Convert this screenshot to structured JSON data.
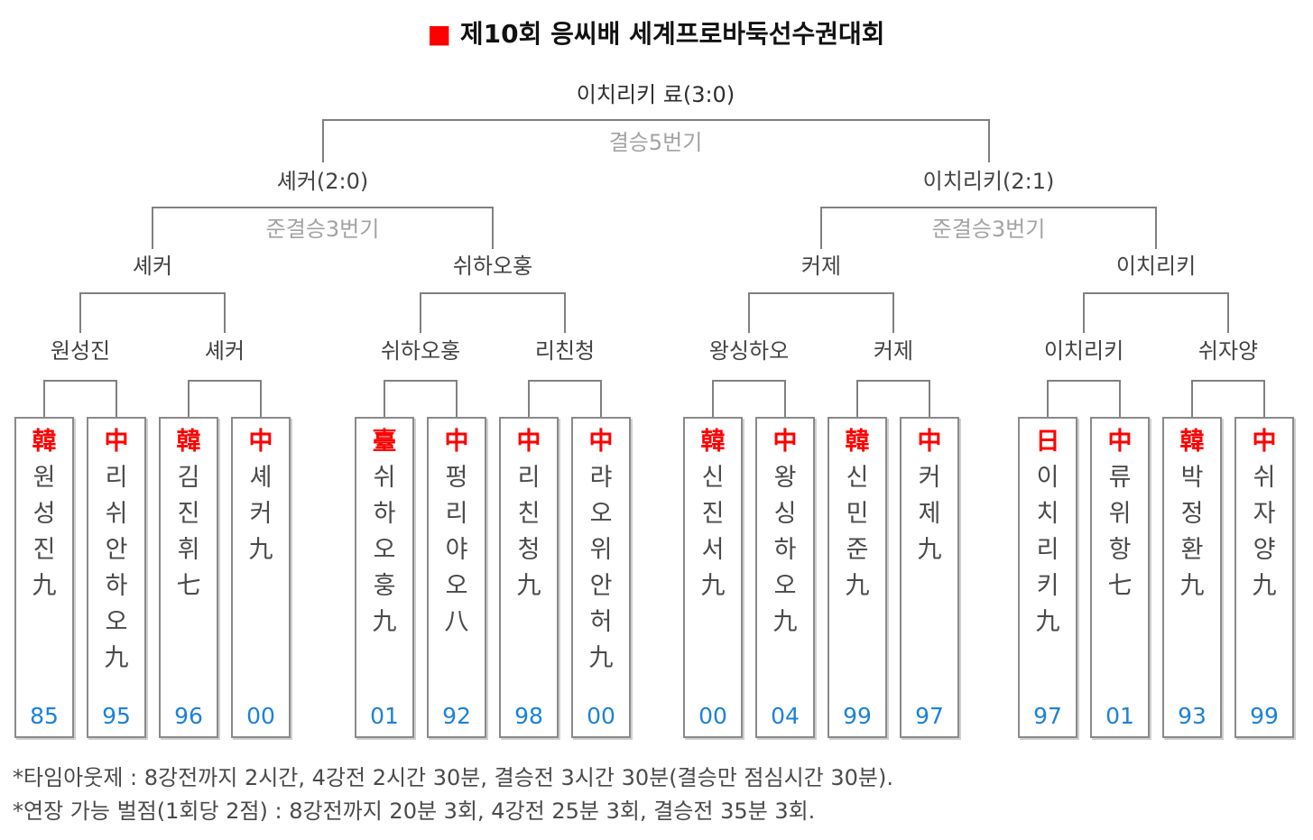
{
  "title": {
    "bullet": "■",
    "text": "제10회 응씨배 세계프로바둑선수권대회"
  },
  "bracket": {
    "champion": "이치리키 료(3:0)",
    "final_series": "결승5번기",
    "semifinal_winners": [
      "셰커(2:0)",
      "이치리키(2:1)"
    ],
    "semifinal_series": [
      "준결승3번기",
      "준결승3번기"
    ],
    "quarterfinal_winners": [
      "셰커",
      "쉬하오훙",
      "커제",
      "이치리키"
    ],
    "round16_winners": [
      "원성진",
      "셰커",
      "쉬하오훙",
      "리친청",
      "왕싱하오",
      "커제",
      "이치리키",
      "쉬자양"
    ],
    "players": [
      {
        "nation": "韓",
        "name": "원성진九",
        "chars": [
          "원",
          "성",
          "진",
          "九"
        ],
        "year": "85"
      },
      {
        "nation": "中",
        "name": "리쉬안하오九",
        "chars": [
          "리",
          "쉬",
          "안",
          "하",
          "오",
          "九"
        ],
        "year": "95"
      },
      {
        "nation": "韓",
        "name": "김진휘七",
        "chars": [
          "김",
          "진",
          "휘",
          "七"
        ],
        "year": "96"
      },
      {
        "nation": "中",
        "name": "셰커九",
        "chars": [
          "셰",
          "커",
          "九"
        ],
        "year": "00"
      },
      {
        "nation": "臺",
        "name": "쉬하오훙九",
        "chars": [
          "쉬",
          "하",
          "오",
          "훙",
          "九"
        ],
        "year": "01"
      },
      {
        "nation": "中",
        "name": "펑리야오八",
        "chars": [
          "펑",
          "리",
          "야",
          "오",
          "八"
        ],
        "year": "92"
      },
      {
        "nation": "中",
        "name": "리친청九",
        "chars": [
          "리",
          "친",
          "청",
          "九"
        ],
        "year": "98"
      },
      {
        "nation": "中",
        "name": "랴오위안허九",
        "chars": [
          "랴",
          "오",
          "위",
          "안",
          "허",
          "九"
        ],
        "year": "00"
      },
      {
        "nation": "韓",
        "name": "신진서九",
        "chars": [
          "신",
          "진",
          "서",
          "九"
        ],
        "year": "00"
      },
      {
        "nation": "中",
        "name": "왕싱하오九",
        "chars": [
          "왕",
          "싱",
          "하",
          "오",
          "九"
        ],
        "year": "04"
      },
      {
        "nation": "韓",
        "name": "신민준九",
        "chars": [
          "신",
          "민",
          "준",
          "九"
        ],
        "year": "99"
      },
      {
        "nation": "中",
        "name": "커제九",
        "chars": [
          "커",
          "제",
          "九"
        ],
        "year": "97"
      },
      {
        "nation": "日",
        "name": "이치리키九",
        "chars": [
          "이",
          "치",
          "리",
          "키",
          "九"
        ],
        "year": "97"
      },
      {
        "nation": "中",
        "name": "류위항七",
        "chars": [
          "류",
          "위",
          "항",
          "七"
        ],
        "year": "01"
      },
      {
        "nation": "韓",
        "name": "박정환九",
        "chars": [
          "박",
          "정",
          "환",
          "九"
        ],
        "year": "93"
      },
      {
        "nation": "中",
        "name": "쉬자양九",
        "chars": [
          "쉬",
          "자",
          "양",
          "九"
        ],
        "year": "99"
      }
    ]
  },
  "footnotes": [
    "*타임아웃제 : 8강전까지 2시간, 4강전 2시간 30분, 결승전 3시간 30분(결승만 점심시간 30분).",
    "*연장 가능 벌점(1회당 2점) : 8강전까지 20분 3회, 4강전 25분 3회, 결승전 35분 3회."
  ],
  "colors": {
    "accent_red": "#ff0000",
    "year_blue": "#1b82d9",
    "line_gray": "#808080",
    "series_gray": "#a3a3a3"
  }
}
